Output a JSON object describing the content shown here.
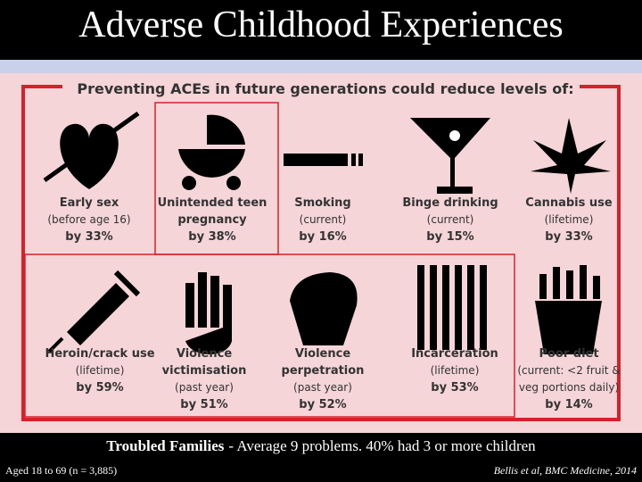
{
  "title": "Adverse Childhood Experiences",
  "panel": {
    "heading": "Preventing ACEs in future generations could reduce levels of:",
    "items": [
      {
        "label": [
          "Early sex"
        ],
        "detail": [
          "(before age 16)"
        ],
        "reduction": "by 33%"
      },
      {
        "label": [
          "Unintended teen",
          "pregnancy"
        ],
        "detail": [],
        "reduction": "by 38%"
      },
      {
        "label": [
          "Smoking"
        ],
        "detail": [
          "(current)"
        ],
        "reduction": "by 16%"
      },
      {
        "label": [
          "Binge drinking"
        ],
        "detail": [
          "(current)"
        ],
        "reduction": "by 15%"
      },
      {
        "label": [
          "Cannabis use"
        ],
        "detail": [
          "(lifetime)"
        ],
        "reduction": "by 33%"
      },
      {
        "label": [
          "Heroin/crack use"
        ],
        "detail": [
          "(lifetime)"
        ],
        "reduction": "by 59%"
      },
      {
        "label": [
          "Violence",
          "victimisation"
        ],
        "detail": [
          "(past year)"
        ],
        "reduction": "by 51%"
      },
      {
        "label": [
          "Violence",
          "perpetration"
        ],
        "detail": [
          "(past year)"
        ],
        "reduction": "by 52%"
      },
      {
        "label": [
          "Incarceration"
        ],
        "detail": [
          "(lifetime)"
        ],
        "reduction": "by 53%"
      },
      {
        "label": [
          "Poor diet"
        ],
        "detail": [
          "(current: <2 fruit &",
          "veg portions daily)"
        ],
        "reduction": "by 14%"
      }
    ]
  },
  "footer": {
    "caption_bold": "Troubled Families",
    "caption_rest": "- Average 9 problems. 40% had 3 or more children",
    "sample": "Aged 18 to 69 (n = 3,885)",
    "source": "Bellis et al, BMC Medicine, 2014"
  }
}
